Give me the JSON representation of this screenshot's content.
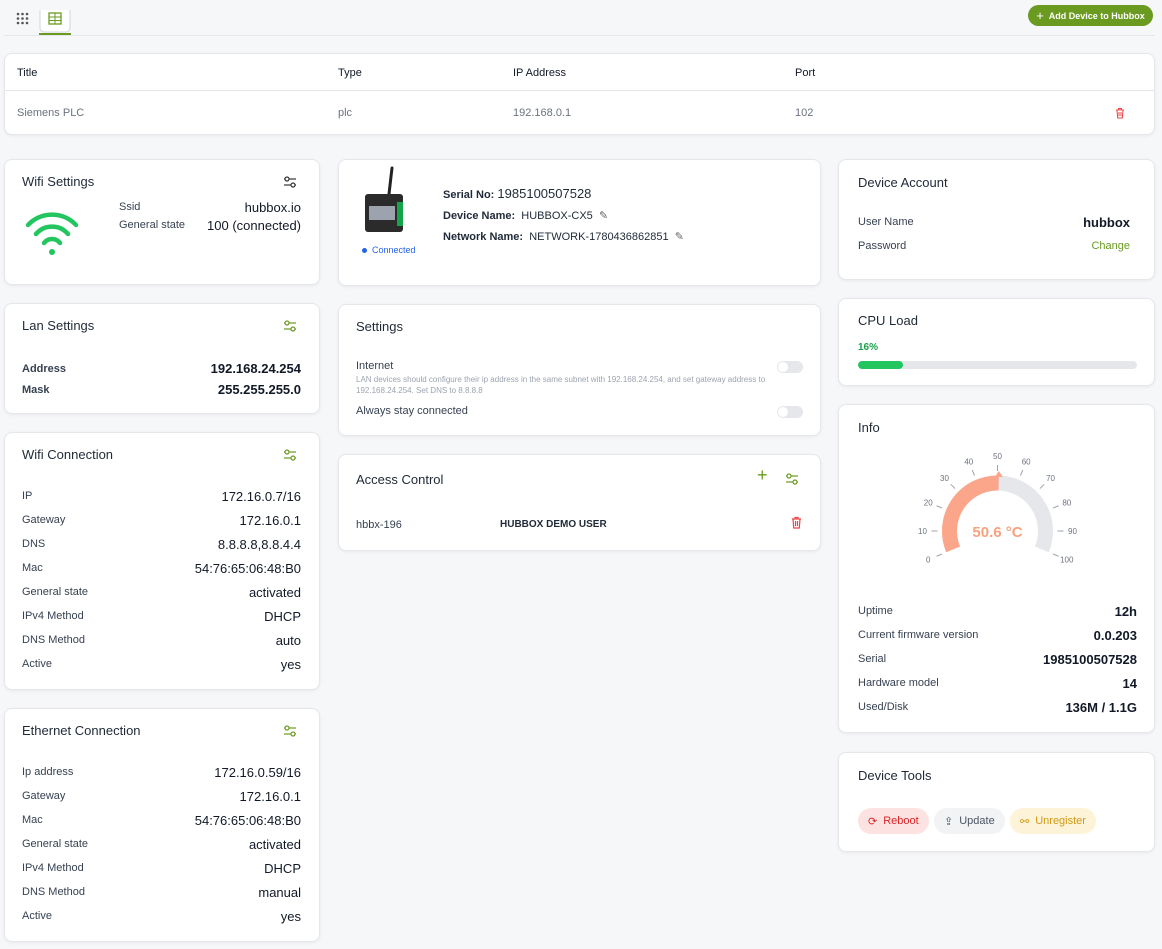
{
  "toolbar": {
    "add_button": "Add Device to Hubbox"
  },
  "table": {
    "headers": [
      "Title",
      "Type",
      "IP Address",
      "Port"
    ],
    "rows": [
      [
        "Siemens PLC",
        "plc",
        "192.168.0.1",
        "102"
      ]
    ]
  },
  "wifi_settings": {
    "title": "Wifi Settings",
    "rows": [
      {
        "label": "Ssid",
        "value": "hubbox.io"
      },
      {
        "label": "General state",
        "value": "100 (connected)"
      }
    ]
  },
  "lan_settings": {
    "title": "Lan Settings",
    "rows": [
      {
        "label": "Address",
        "value": "192.168.24.254"
      },
      {
        "label": "Mask",
        "value": "255.255.255.0"
      }
    ]
  },
  "wifi_connection": {
    "title": "Wifi Connection",
    "rows": [
      {
        "label": "IP",
        "value": "172.16.0.7/16"
      },
      {
        "label": "Gateway",
        "value": "172.16.0.1"
      },
      {
        "label": "DNS",
        "value": "8.8.8.8,8.8.4.4"
      },
      {
        "label": "Mac",
        "value": "54:76:65:06:48:B0"
      },
      {
        "label": "General state",
        "value": "activated"
      },
      {
        "label": "IPv4 Method",
        "value": "DHCP"
      },
      {
        "label": "DNS Method",
        "value": "auto"
      },
      {
        "label": "Active",
        "value": "yes"
      }
    ]
  },
  "ethernet_connection": {
    "title": "Ethernet Connection",
    "rows": [
      {
        "label": "Ip address",
        "value": "172.16.0.59/16"
      },
      {
        "label": "Gateway",
        "value": "172.16.0.1"
      },
      {
        "label": "Mac",
        "value": "54:76:65:06:48:B0"
      },
      {
        "label": "General state",
        "value": "activated"
      },
      {
        "label": "IPv4 Method",
        "value": "DHCP"
      },
      {
        "label": "DNS Method",
        "value": "manual"
      },
      {
        "label": "Active",
        "value": "yes"
      }
    ]
  },
  "device": {
    "serial_label": "Serial No:",
    "serial": "1985100507528",
    "name_label": "Device Name:",
    "name": "HUBBOX-CX5",
    "network_label": "Network Name:",
    "network": "NETWORK-1780436862851",
    "status": "Connected"
  },
  "settings": {
    "title": "Settings",
    "internet": "Internet",
    "internet_note": "LAN devices should configure their ip address in the same subnet with 192.168.24.254, and set gateway address to 192.168.24.254. Set DNS to 8.8.8.8",
    "always": "Always stay connected"
  },
  "access_control": {
    "title": "Access Control",
    "rows": [
      [
        "hbbx-196",
        "HUBBOX DEMO USER"
      ]
    ]
  },
  "device_account": {
    "title": "Device Account",
    "rows": [
      {
        "label": "User Name",
        "value": "hubbox"
      },
      {
        "label": "Password",
        "value": "Change"
      }
    ]
  },
  "cpu_load": {
    "title": "CPU Load",
    "value": 16,
    "label": "16%",
    "lim": [
      0,
      100
    ]
  },
  "info": {
    "title": "Info",
    "gauge": {
      "value": 50.6,
      "label": "50.6 °C",
      "lim": [
        0,
        100
      ],
      "ticks": [
        0,
        10,
        20,
        30,
        40,
        50,
        60,
        70,
        80,
        90,
        100
      ]
    },
    "rows": [
      {
        "label": "Uptime",
        "value": "12h"
      },
      {
        "label": "Current firmware version",
        "value": "0.0.203"
      },
      {
        "label": "Serial",
        "value": "1985100507528"
      },
      {
        "label": "Hardware model",
        "value": "14"
      },
      {
        "label": "Used/Disk",
        "value": "136M / 1.1G"
      }
    ]
  },
  "device_tools": {
    "title": "Device Tools",
    "buttons": [
      "Reboot",
      "Update",
      "Unregister"
    ]
  }
}
